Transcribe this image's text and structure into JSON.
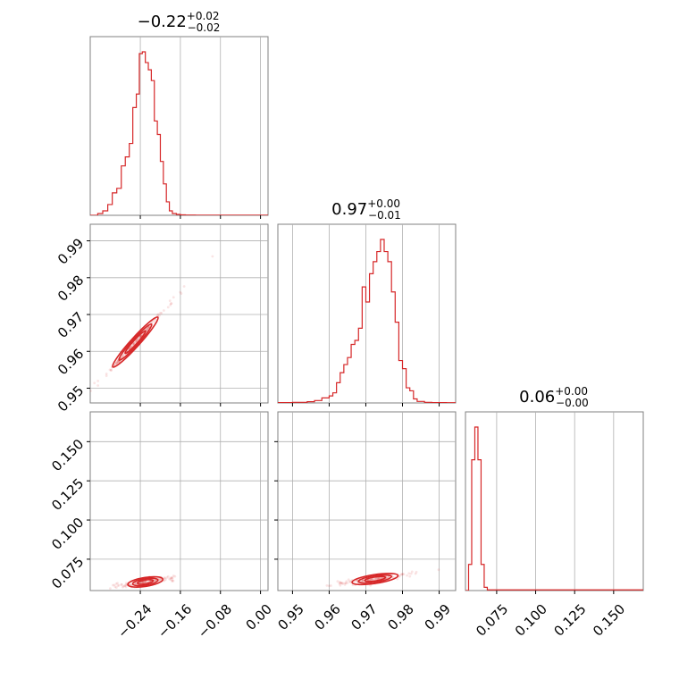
{
  "colors": {
    "series": "#d62728",
    "frame": "#808080",
    "grid": "#b0b0b0"
  },
  "chart_data": {
    "type": "corner",
    "titles": [
      {
        "value": "0.22",
        "sign": "−",
        "upper": "+0.02",
        "lower": "−0.02"
      },
      {
        "value": "0.97",
        "sign": "",
        "upper": "+0.00",
        "lower": "−0.01"
      },
      {
        "value": "0.06",
        "sign": "",
        "upper": "+0.00",
        "lower": "−0.00"
      }
    ],
    "params": [
      {
        "range": [
          -0.34,
          0.015
        ],
        "ticks": [
          -0.24,
          -0.16,
          -0.08,
          0.0
        ],
        "tick_labels": [
          "−0.24",
          "−0.16",
          "−0.08",
          "0.00"
        ]
      },
      {
        "range": [
          0.946,
          0.9945
        ],
        "ticks": [
          0.95,
          0.96,
          0.97,
          0.98,
          0.99
        ],
        "tick_labels": [
          "0.95",
          "0.96",
          "0.97",
          "0.98",
          "0.99"
        ]
      },
      {
        "range": [
          0.055,
          0.169
        ],
        "ticks": [
          0.075,
          0.1,
          0.125,
          0.15
        ],
        "tick_labels": [
          "0.075",
          "0.100",
          "0.125",
          "0.150"
        ]
      }
    ],
    "histograms": [
      {
        "param": 0,
        "bin_edges": [
          -0.34,
          -0.325,
          -0.315,
          -0.305,
          -0.296,
          -0.287,
          -0.278,
          -0.27,
          -0.262,
          -0.255,
          -0.248,
          -0.242,
          -0.236,
          -0.23,
          -0.224,
          -0.218,
          -0.212,
          -0.206,
          -0.2,
          -0.194,
          -0.188,
          -0.182,
          -0.176,
          -0.168,
          -0.16,
          -0.15,
          -0.13,
          0.015
        ],
        "counts": [
          0,
          2,
          5,
          12,
          25,
          30,
          55,
          65,
          80,
          120,
          135,
          180,
          182,
          170,
          162,
          150,
          105,
          90,
          60,
          35,
          15,
          5,
          2,
          1,
          0.5,
          0.3,
          0.2
        ]
      },
      {
        "param": 1,
        "bin_edges": [
          0.946,
          0.95,
          0.954,
          0.956,
          0.958,
          0.96,
          0.961,
          0.962,
          0.963,
          0.964,
          0.965,
          0.966,
          0.967,
          0.968,
          0.969,
          0.97,
          0.971,
          0.972,
          0.973,
          0.974,
          0.975,
          0.976,
          0.977,
          0.978,
          0.979,
          0.98,
          0.981,
          0.982,
          0.983,
          0.984,
          0.986,
          0.988,
          0.992,
          0.9945
        ],
        "counts": [
          0.3,
          0.6,
          1.2,
          2.4,
          5,
          7,
          10,
          20,
          30,
          38,
          45,
          58,
          62,
          74,
          115,
          100,
          128,
          140,
          150,
          162,
          150,
          140,
          110,
          80,
          42,
          34,
          15,
          12,
          4,
          1.5,
          0.6,
          0.3,
          0.2
        ]
      },
      {
        "param": 2,
        "bin_edges": [
          0.055,
          0.057,
          0.059,
          0.061,
          0.063,
          0.065,
          0.067,
          0.069,
          0.169
        ],
        "counts": [
          0,
          12,
          60,
          75,
          60,
          12,
          1.5,
          0.3
        ]
      }
    ],
    "pairs": [
      {
        "x_param": 0,
        "y_param": 1,
        "line": {
          "slope": 0.15,
          "intercept": 1.0,
          "x_range": [
            -0.34,
            -0.16
          ]
        }
      },
      {
        "x_param": 0,
        "y_param": 2,
        "line": {
          "slope": 0.05,
          "intercept": 0.072,
          "x_range": [
            -0.3,
            -0.16
          ]
        }
      },
      {
        "x_param": 1,
        "y_param": 2,
        "line": {
          "slope": 0.35,
          "intercept": -0.278,
          "x_range": [
            0.96,
            0.985
          ]
        }
      }
    ],
    "grid": true,
    "legend": "none"
  }
}
